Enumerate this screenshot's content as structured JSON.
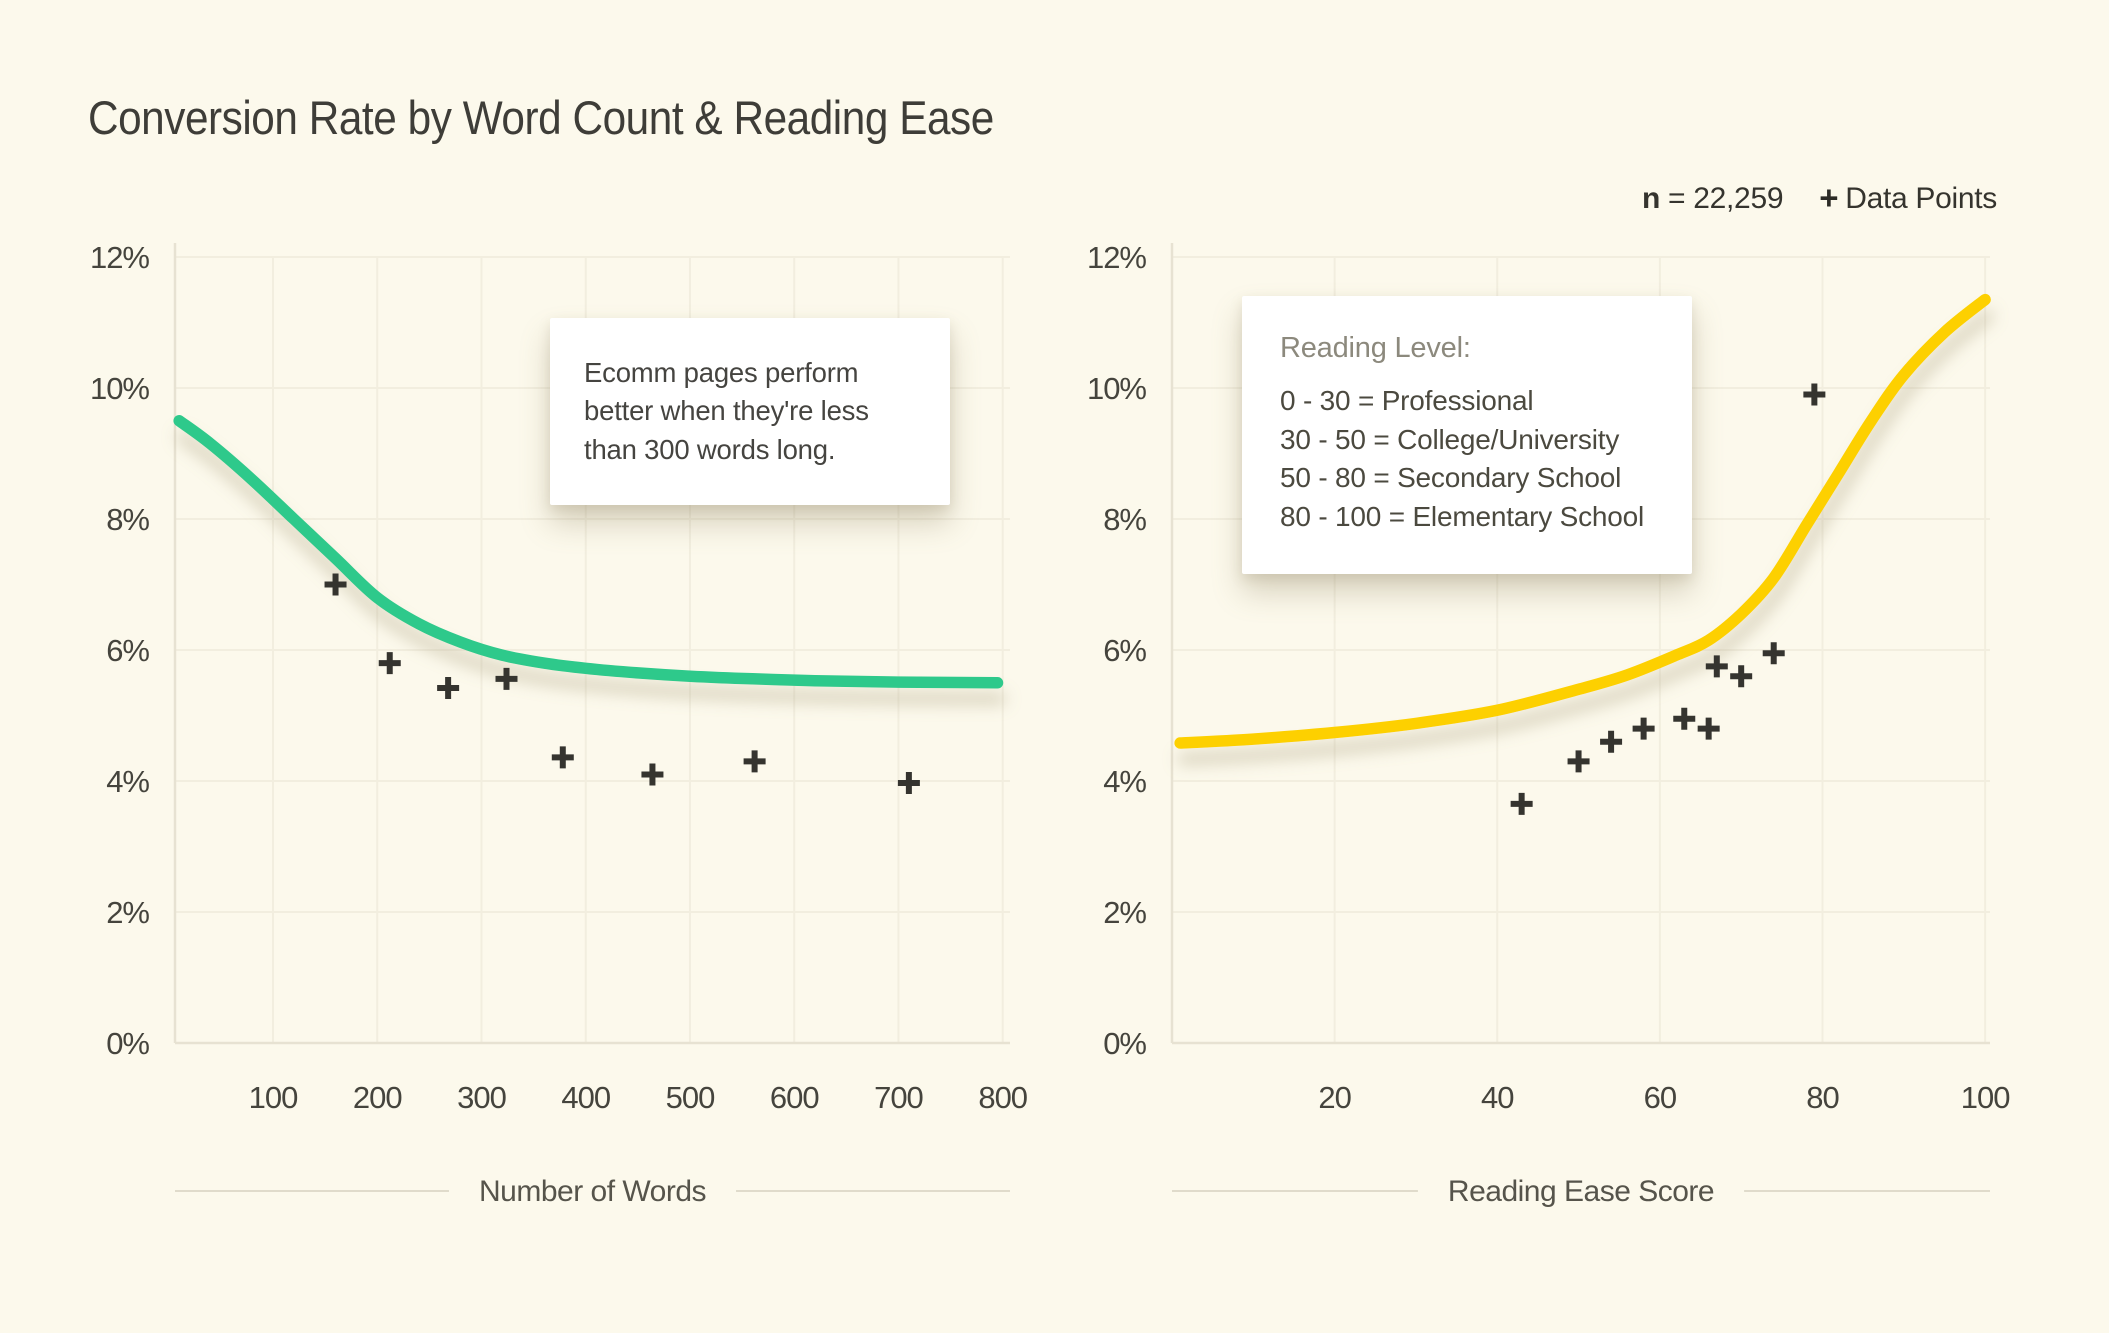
{
  "page": {
    "title": "Conversion Rate by Word Count & Reading Ease",
    "background_color": "#fcf9ec"
  },
  "header": {
    "n_label": "n",
    "n_value": " = 22,259",
    "marker_glyph": "+",
    "marker_label": "Data Points"
  },
  "annotation": {
    "lines": [
      "Ecomm pages perform",
      "better when they're less",
      "than 300 words long."
    ]
  },
  "reading_level": {
    "title": "Reading Level:",
    "items": [
      "0 - 30 = Professional",
      "30 - 50 = College/University",
      "50 - 80 = Secondary School",
      "80 - 100 = Elementary School"
    ]
  },
  "colors": {
    "green_line": "#2dc98b",
    "yellow_line": "#fdd002",
    "marker": "#35342f",
    "grid": "#f2eedf",
    "axis": "#e7e2d2",
    "tick_text": "#45443d",
    "axis_label_text": "#56544b"
  },
  "chart_data": [
    {
      "type": "line",
      "overlay": "scatter",
      "title": "",
      "xlabel": "Number of Words",
      "ylabel": "Conversion Rate",
      "xlim": [
        6,
        807
      ],
      "ylim": [
        0,
        12
      ],
      "grid": true,
      "x_ticks": [
        {
          "value": 100,
          "label": "100"
        },
        {
          "value": 200,
          "label": "200"
        },
        {
          "value": 300,
          "label": "300"
        },
        {
          "value": 400,
          "label": "400"
        },
        {
          "value": 500,
          "label": "500"
        },
        {
          "value": 600,
          "label": "600"
        },
        {
          "value": 700,
          "label": "700"
        },
        {
          "value": 800,
          "label": "800"
        }
      ],
      "y_ticks": [
        {
          "value": 0,
          "label": "0%"
        },
        {
          "value": 2,
          "label": "2%"
        },
        {
          "value": 4,
          "label": "4%"
        },
        {
          "value": 6,
          "label": "6%"
        },
        {
          "value": 8,
          "label": "8%"
        },
        {
          "value": 10,
          "label": "10%"
        },
        {
          "value": 12,
          "label": "12%"
        }
      ],
      "line_color": "#2dc98b",
      "trend": [
        [
          10,
          9.5
        ],
        [
          40,
          9.15
        ],
        [
          80,
          8.6
        ],
        [
          120,
          8.0
        ],
        [
          160,
          7.4
        ],
        [
          200,
          6.8
        ],
        [
          240,
          6.4
        ],
        [
          280,
          6.12
        ],
        [
          320,
          5.92
        ],
        [
          360,
          5.8
        ],
        [
          400,
          5.72
        ],
        [
          450,
          5.65
        ],
        [
          500,
          5.6
        ],
        [
          560,
          5.56
        ],
        [
          620,
          5.53
        ],
        [
          700,
          5.51
        ],
        [
          795,
          5.5
        ]
      ],
      "scatter_points": [
        [
          160,
          7.0
        ],
        [
          212,
          5.8
        ],
        [
          268,
          5.42
        ],
        [
          324,
          5.56
        ],
        [
          378,
          4.36
        ],
        [
          464,
          4.1
        ],
        [
          562,
          4.3
        ],
        [
          710,
          3.97
        ]
      ]
    },
    {
      "type": "line",
      "overlay": "scatter",
      "title": "",
      "xlabel": "Reading Ease Score",
      "ylabel": "Conversion Rate",
      "xlim": [
        0,
        100.6
      ],
      "ylim": [
        0,
        12
      ],
      "grid": true,
      "x_ticks": [
        {
          "value": 20,
          "label": "20"
        },
        {
          "value": 40,
          "label": "40"
        },
        {
          "value": 60,
          "label": "60"
        },
        {
          "value": 80,
          "label": "80"
        },
        {
          "value": 100,
          "label": "100"
        }
      ],
      "y_ticks": [
        {
          "value": 0,
          "label": "0%"
        },
        {
          "value": 2,
          "label": "2%"
        },
        {
          "value": 4,
          "label": "4%"
        },
        {
          "value": 6,
          "label": "6%"
        },
        {
          "value": 8,
          "label": "8%"
        },
        {
          "value": 10,
          "label": "10%"
        },
        {
          "value": 12,
          "label": "12%"
        }
      ],
      "line_color": "#fdd002",
      "trend": [
        [
          1,
          4.58
        ],
        [
          10,
          4.64
        ],
        [
          20,
          4.74
        ],
        [
          30,
          4.88
        ],
        [
          40,
          5.08
        ],
        [
          50,
          5.4
        ],
        [
          56,
          5.62
        ],
        [
          62,
          5.92
        ],
        [
          66,
          6.15
        ],
        [
          70,
          6.55
        ],
        [
          74,
          7.1
        ],
        [
          78,
          7.9
        ],
        [
          82,
          8.7
        ],
        [
          86,
          9.5
        ],
        [
          90,
          10.2
        ],
        [
          95,
          10.85
        ],
        [
          100,
          11.35
        ]
      ],
      "scatter_points": [
        [
          43,
          3.65
        ],
        [
          50,
          4.3
        ],
        [
          54,
          4.6
        ],
        [
          58,
          4.8
        ],
        [
          63,
          4.95
        ],
        [
          66,
          4.8
        ],
        [
          67,
          5.75
        ],
        [
          70,
          5.6
        ],
        [
          74,
          5.95
        ],
        [
          79,
          9.9
        ]
      ]
    }
  ]
}
